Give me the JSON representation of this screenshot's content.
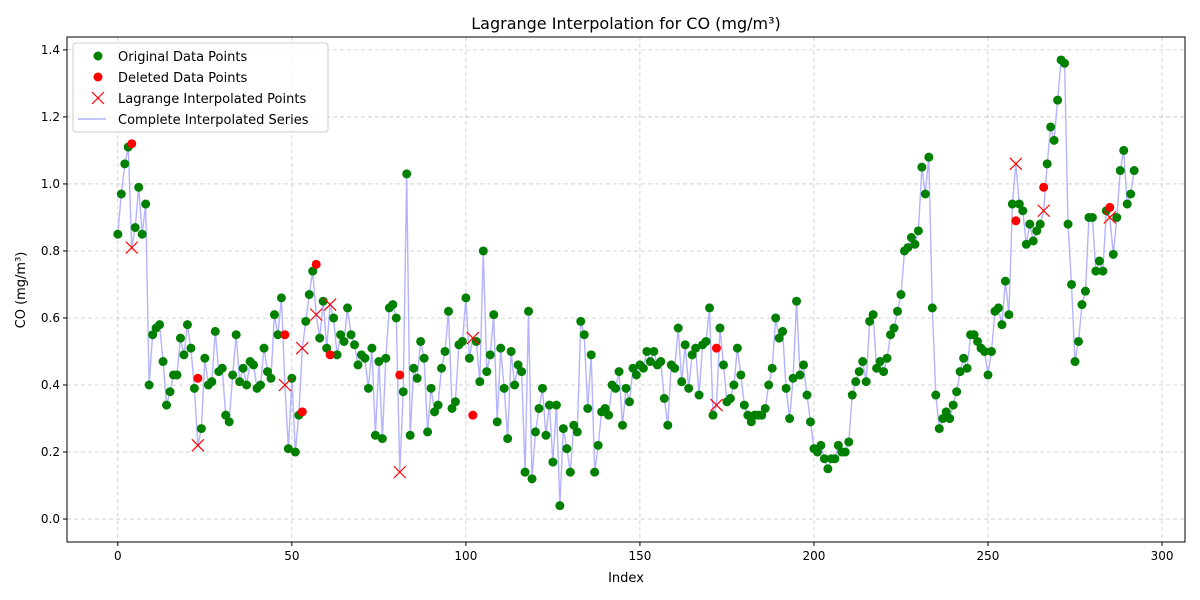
{
  "chart_data": {
    "type": "scatter",
    "title": "Lagrange Interpolation for CO (mg/m³)",
    "xlabel": "Index",
    "ylabel": "CO (mg/m³)",
    "xlim": [
      -14.6,
      306.6
    ],
    "ylim": [
      -0.0685,
      1.4385
    ],
    "xticks": [
      0,
      50,
      100,
      150,
      200,
      250,
      300
    ],
    "yticks": [
      0.0,
      0.2,
      0.4,
      0.6,
      0.8,
      1.0,
      1.2,
      1.4
    ],
    "xtick_labels": [
      "0",
      "50",
      "100",
      "150",
      "200",
      "250",
      "300"
    ],
    "ytick_labels": [
      "0.0",
      "0.2",
      "0.4",
      "0.6",
      "0.8",
      "1.0",
      "1.2",
      "1.4"
    ],
    "grid": true,
    "legend_position": "top-left",
    "colors": {
      "original": "#008000",
      "deleted": "#ff0000",
      "interpolated_marker": "#ff0000",
      "complete_line": "#b3b3ff"
    },
    "series": [
      {
        "name": "Original Data Points",
        "marker": "circle",
        "x": [
          0,
          1,
          2,
          3,
          5,
          6,
          7,
          8,
          9,
          10,
          11,
          12,
          13,
          14,
          15,
          16,
          17,
          18,
          19,
          20,
          21,
          22,
          24,
          25,
          26,
          27,
          28,
          29,
          30,
          31,
          32,
          33,
          34,
          35,
          36,
          37,
          38,
          39,
          40,
          41,
          42,
          43,
          44,
          45,
          46,
          47,
          49,
          50,
          51,
          52,
          54,
          55,
          56,
          58,
          59,
          60,
          62,
          63,
          64,
          65,
          66,
          67,
          68,
          69,
          70,
          71,
          72,
          73,
          74,
          75,
          76,
          77,
          78,
          79,
          80,
          82,
          83,
          84,
          85,
          86,
          87,
          88,
          89,
          90,
          91,
          92,
          93,
          94,
          95,
          96,
          97,
          98,
          99,
          100,
          101,
          103,
          104,
          105,
          106,
          107,
          108,
          109,
          110,
          111,
          112,
          113,
          114,
          115,
          116,
          117,
          118,
          119,
          120,
          121,
          122,
          123,
          124,
          125,
          126,
          127,
          128,
          129,
          130,
          131,
          132,
          133,
          134,
          135,
          136,
          137,
          138,
          139,
          140,
          141,
          142,
          143,
          144,
          145,
          146,
          147,
          148,
          149,
          150,
          151,
          152,
          153,
          154,
          155,
          156,
          157,
          158,
          159,
          160,
          161,
          162,
          163,
          164,
          165,
          166,
          167,
          168,
          169,
          170,
          171,
          173,
          174,
          175,
          176,
          177,
          178,
          179,
          180,
          181,
          182,
          183,
          184,
          185,
          186,
          187,
          188,
          189,
          190,
          191,
          192,
          193,
          194,
          195,
          196,
          197,
          198,
          199,
          200,
          201,
          202,
          203,
          204,
          205,
          206,
          207,
          208,
          209,
          210,
          211,
          212,
          213,
          214,
          215,
          216,
          217,
          218,
          219,
          220,
          221,
          222,
          223,
          224,
          225,
          226,
          227,
          228,
          229,
          230,
          231,
          232,
          233,
          234,
          235,
          236,
          237,
          238,
          239,
          240,
          241,
          242,
          243,
          244,
          245,
          246,
          247,
          248,
          249,
          250,
          251,
          252,
          253,
          254,
          255,
          256,
          257,
          259,
          260,
          261,
          262,
          263,
          264,
          265,
          267,
          268,
          269,
          270,
          271,
          272,
          273,
          274,
          275,
          276,
          277,
          278,
          279,
          280,
          281,
          282,
          283,
          284,
          286,
          287,
          288,
          289,
          290,
          291,
          292
        ],
        "y": [
          0.85,
          0.97,
          1.06,
          1.11,
          0.87,
          0.99,
          0.85,
          0.94,
          0.4,
          0.55,
          0.57,
          0.58,
          0.47,
          0.34,
          0.38,
          0.43,
          0.43,
          0.54,
          0.49,
          0.58,
          0.51,
          0.39,
          0.27,
          0.48,
          0.4,
          0.41,
          0.56,
          0.44,
          0.45,
          0.31,
          0.29,
          0.43,
          0.55,
          0.41,
          0.45,
          0.4,
          0.47,
          0.46,
          0.39,
          0.4,
          0.51,
          0.44,
          0.42,
          0.61,
          0.55,
          0.66,
          0.21,
          0.42,
          0.2,
          0.31,
          0.59,
          0.67,
          0.74,
          0.54,
          0.65,
          0.51,
          0.6,
          0.49,
          0.55,
          0.53,
          0.63,
          0.55,
          0.52,
          0.46,
          0.49,
          0.48,
          0.39,
          0.51,
          0.25,
          0.47,
          0.24,
          0.48,
          0.63,
          0.64,
          0.6,
          0.38,
          1.03,
          0.25,
          0.45,
          0.42,
          0.53,
          0.48,
          0.26,
          0.39,
          0.32,
          0.34,
          0.45,
          0.5,
          0.62,
          0.33,
          0.35,
          0.52,
          0.53,
          0.66,
          0.48,
          0.53,
          0.41,
          0.8,
          0.44,
          0.49,
          0.61,
          0.29,
          0.51,
          0.39,
          0.24,
          0.5,
          0.4,
          0.46,
          0.44,
          0.14,
          0.62,
          0.12,
          0.26,
          0.33,
          0.39,
          0.25,
          0.34,
          0.17,
          0.34,
          0.04,
          0.27,
          0.21,
          0.14,
          0.28,
          0.26,
          0.59,
          0.55,
          0.33,
          0.49,
          0.14,
          0.22,
          0.32,
          0.33,
          0.31,
          0.4,
          0.39,
          0.44,
          0.28,
          0.39,
          0.35,
          0.45,
          0.43,
          0.46,
          0.45,
          0.5,
          0.47,
          0.5,
          0.46,
          0.47,
          0.36,
          0.28,
          0.46,
          0.45,
          0.57,
          0.41,
          0.52,
          0.39,
          0.49,
          0.51,
          0.37,
          0.52,
          0.53,
          0.63,
          0.31,
          0.57,
          0.46,
          0.35,
          0.36,
          0.4,
          0.51,
          0.43,
          0.34,
          0.31,
          0.29,
          0.31,
          0.31,
          0.31,
          0.33,
          0.4,
          0.45,
          0.6,
          0.54,
          0.56,
          0.39,
          0.3,
          0.42,
          0.65,
          0.43,
          0.46,
          0.37,
          0.29,
          0.21,
          0.2,
          0.22,
          0.18,
          0.15,
          0.18,
          0.18,
          0.22,
          0.2,
          0.2,
          0.23,
          0.37,
          0.41,
          0.44,
          0.47,
          0.41,
          0.59,
          0.61,
          0.45,
          0.47,
          0.44,
          0.48,
          0.55,
          0.57,
          0.62,
          0.67,
          0.8,
          0.81,
          0.84,
          0.82,
          0.86,
          1.05,
          0.97,
          1.08,
          0.63,
          0.37,
          0.27,
          0.3,
          0.32,
          0.3,
          0.34,
          0.38,
          0.44,
          0.48,
          0.45,
          0.55,
          0.55,
          0.53,
          0.51,
          0.5,
          0.43,
          0.5,
          0.62,
          0.63,
          0.58,
          0.71,
          0.61,
          0.94,
          0.94,
          0.92,
          0.82,
          0.88,
          0.83,
          0.86,
          0.88,
          1.06,
          1.17,
          1.13,
          1.25,
          1.37,
          1.36,
          0.88,
          0.7,
          0.47,
          0.53,
          0.64,
          0.68,
          0.9,
          0.9,
          0.74,
          0.77,
          0.74,
          0.92,
          0.79,
          0.9,
          1.04,
          1.1,
          0.94,
          0.97,
          1.04
        ]
      },
      {
        "name": "Deleted Data Points",
        "marker": "circle",
        "x": [
          4,
          23,
          48,
          53,
          57,
          61,
          81,
          102,
          172,
          258,
          266,
          285
        ],
        "y": [
          1.12,
          0.42,
          0.55,
          0.32,
          0.76,
          0.49,
          0.43,
          0.31,
          0.51,
          0.89,
          0.99,
          0.93
        ]
      },
      {
        "name": "Lagrange Interpolated Points",
        "marker": "x",
        "x": [
          4,
          23,
          48,
          53,
          57,
          61,
          81,
          102,
          172,
          258,
          266,
          285
        ],
        "y": [
          0.81,
          0.22,
          0.4,
          0.51,
          0.61,
          0.64,
          0.14,
          0.54,
          0.34,
          1.06,
          0.92,
          0.9
        ]
      },
      {
        "name": "Complete Interpolated Series",
        "marker": "line"
      }
    ]
  }
}
